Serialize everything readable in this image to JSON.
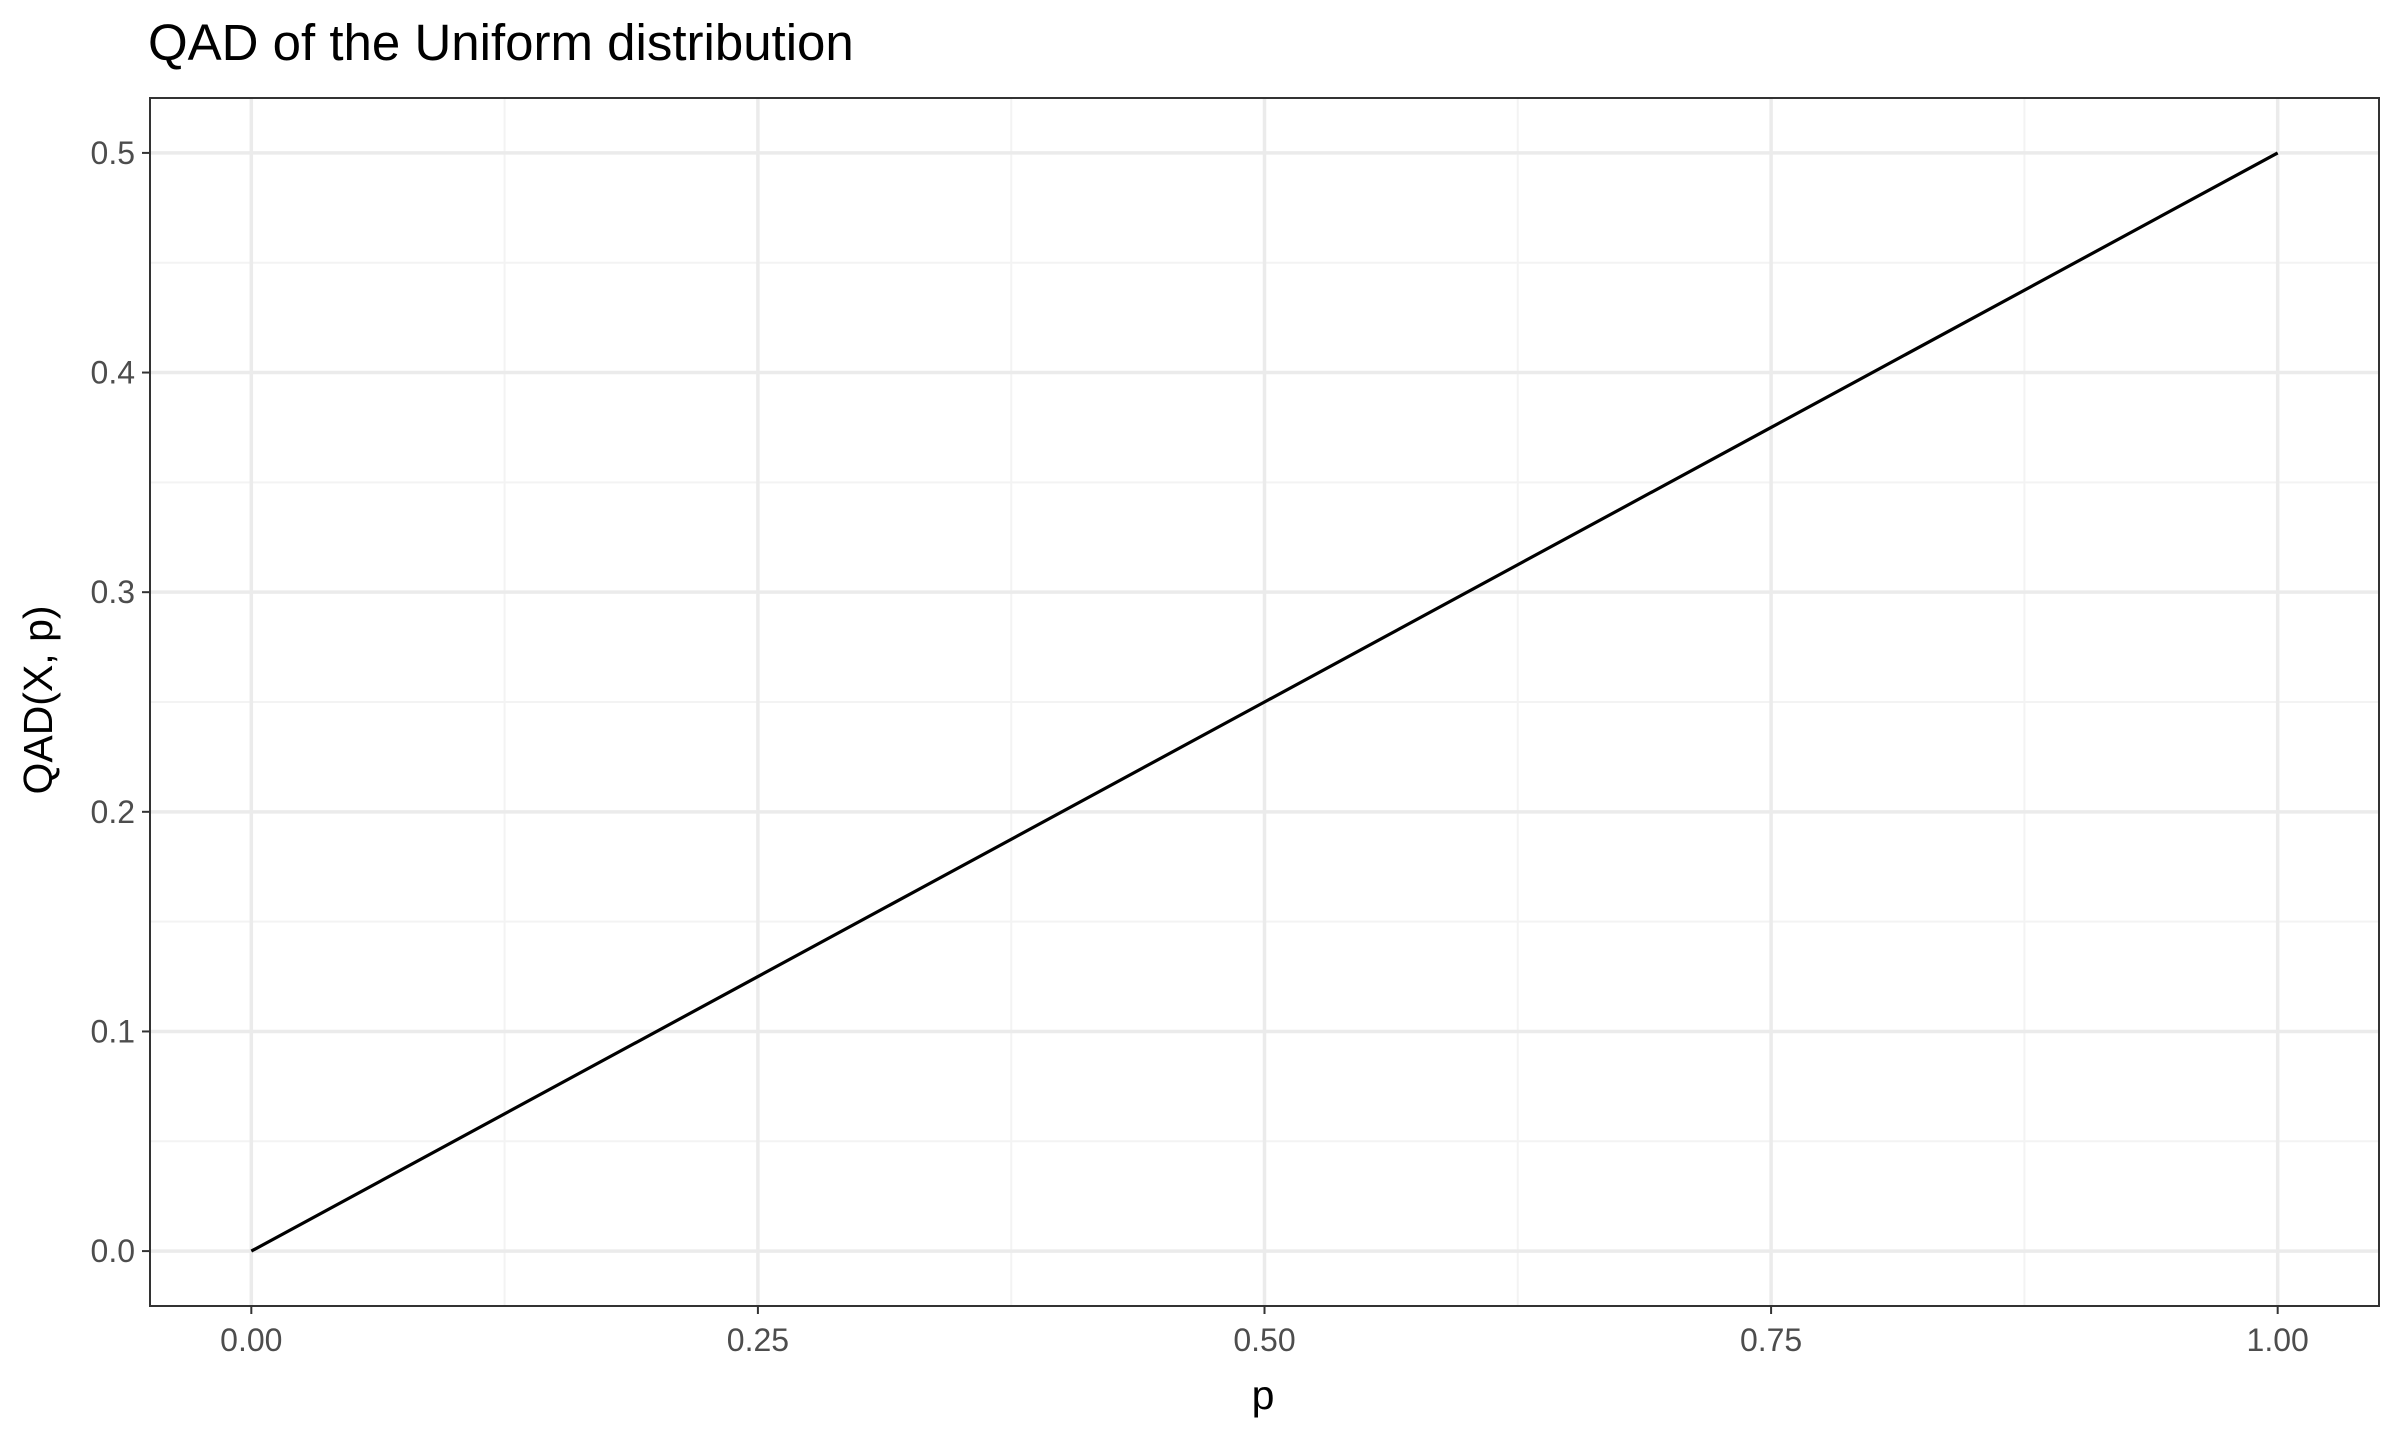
{
  "chart_data": {
    "type": "line",
    "title": "QAD of the Uniform distribution",
    "xlabel": "p",
    "ylabel": "QAD(X, p)",
    "xlim": [
      -0.05,
      1.05
    ],
    "ylim": [
      -0.025,
      0.525
    ],
    "x_ticks": [
      0.0,
      0.25,
      0.5,
      0.75,
      1.0
    ],
    "x_tick_labels": [
      "0.00",
      "0.25",
      "0.50",
      "0.75",
      "1.00"
    ],
    "x_minor_ticks": [
      0.125,
      0.375,
      0.625,
      0.875
    ],
    "y_ticks": [
      0.0,
      0.1,
      0.2,
      0.3,
      0.4,
      0.5
    ],
    "y_tick_labels": [
      "0.0",
      "0.1",
      "0.2",
      "0.3",
      "0.4",
      "0.5"
    ],
    "y_minor_ticks": [
      0.05,
      0.15,
      0.25,
      0.35,
      0.45
    ],
    "grid": true,
    "series": [
      {
        "color": "#000000",
        "x": [
          0.0,
          0.25,
          0.5,
          0.75,
          1.0
        ],
        "y": [
          0.0,
          0.125,
          0.25,
          0.375,
          0.5
        ]
      }
    ],
    "colors": {
      "background": "#ffffff",
      "panel_border": "#333333",
      "grid_major": "#ebebeb",
      "grid_minor": "#f3f3f3",
      "line": "#000000",
      "tick_text": "#4d4d4d"
    }
  }
}
